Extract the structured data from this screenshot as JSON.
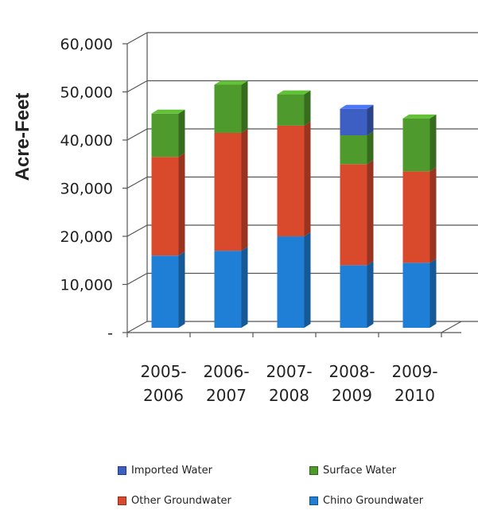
{
  "chart_data": {
    "type": "bar",
    "stacked": true,
    "three_d": true,
    "categories": [
      "2005-2006",
      "2006-2007",
      "2007-2008",
      "2008-2009",
      "2009-2010"
    ],
    "category_lines": [
      [
        "2005-",
        "2006"
      ],
      [
        "2006-",
        "2007"
      ],
      [
        "2007-",
        "2008"
      ],
      [
        "2008-",
        "2009"
      ],
      [
        "2009-",
        "2010"
      ]
    ],
    "series": [
      {
        "name": "Chino Groundwater",
        "color": "#1f7fd6",
        "values": [
          15000,
          16000,
          19000,
          13000,
          13500
        ]
      },
      {
        "name": "Other Groundwater",
        "color": "#d94a2c",
        "values": [
          20500,
          24500,
          23000,
          21000,
          19000
        ]
      },
      {
        "name": "Surface Water",
        "color": "#4f9a2c",
        "values": [
          9000,
          10000,
          6500,
          6000,
          11000
        ]
      },
      {
        "name": "Imported Water",
        "color": "#3d5fc4",
        "values": [
          0,
          0,
          0,
          5500,
          0
        ]
      }
    ],
    "ylabel": "Acre-Feet",
    "ylim": [
      0,
      60000
    ],
    "yticks": [
      0,
      10000,
      20000,
      30000,
      40000,
      50000,
      60000
    ],
    "ytick_labels": [
      "-",
      "10,000",
      "20,000",
      "30,000",
      "40,000",
      "50,000",
      "60,000"
    ],
    "grid": true,
    "legend": {
      "placement": "bottom",
      "entries": [
        "Imported Water",
        "Surface Water",
        "Other Groundwater",
        "Chino Groundwater"
      ]
    }
  }
}
